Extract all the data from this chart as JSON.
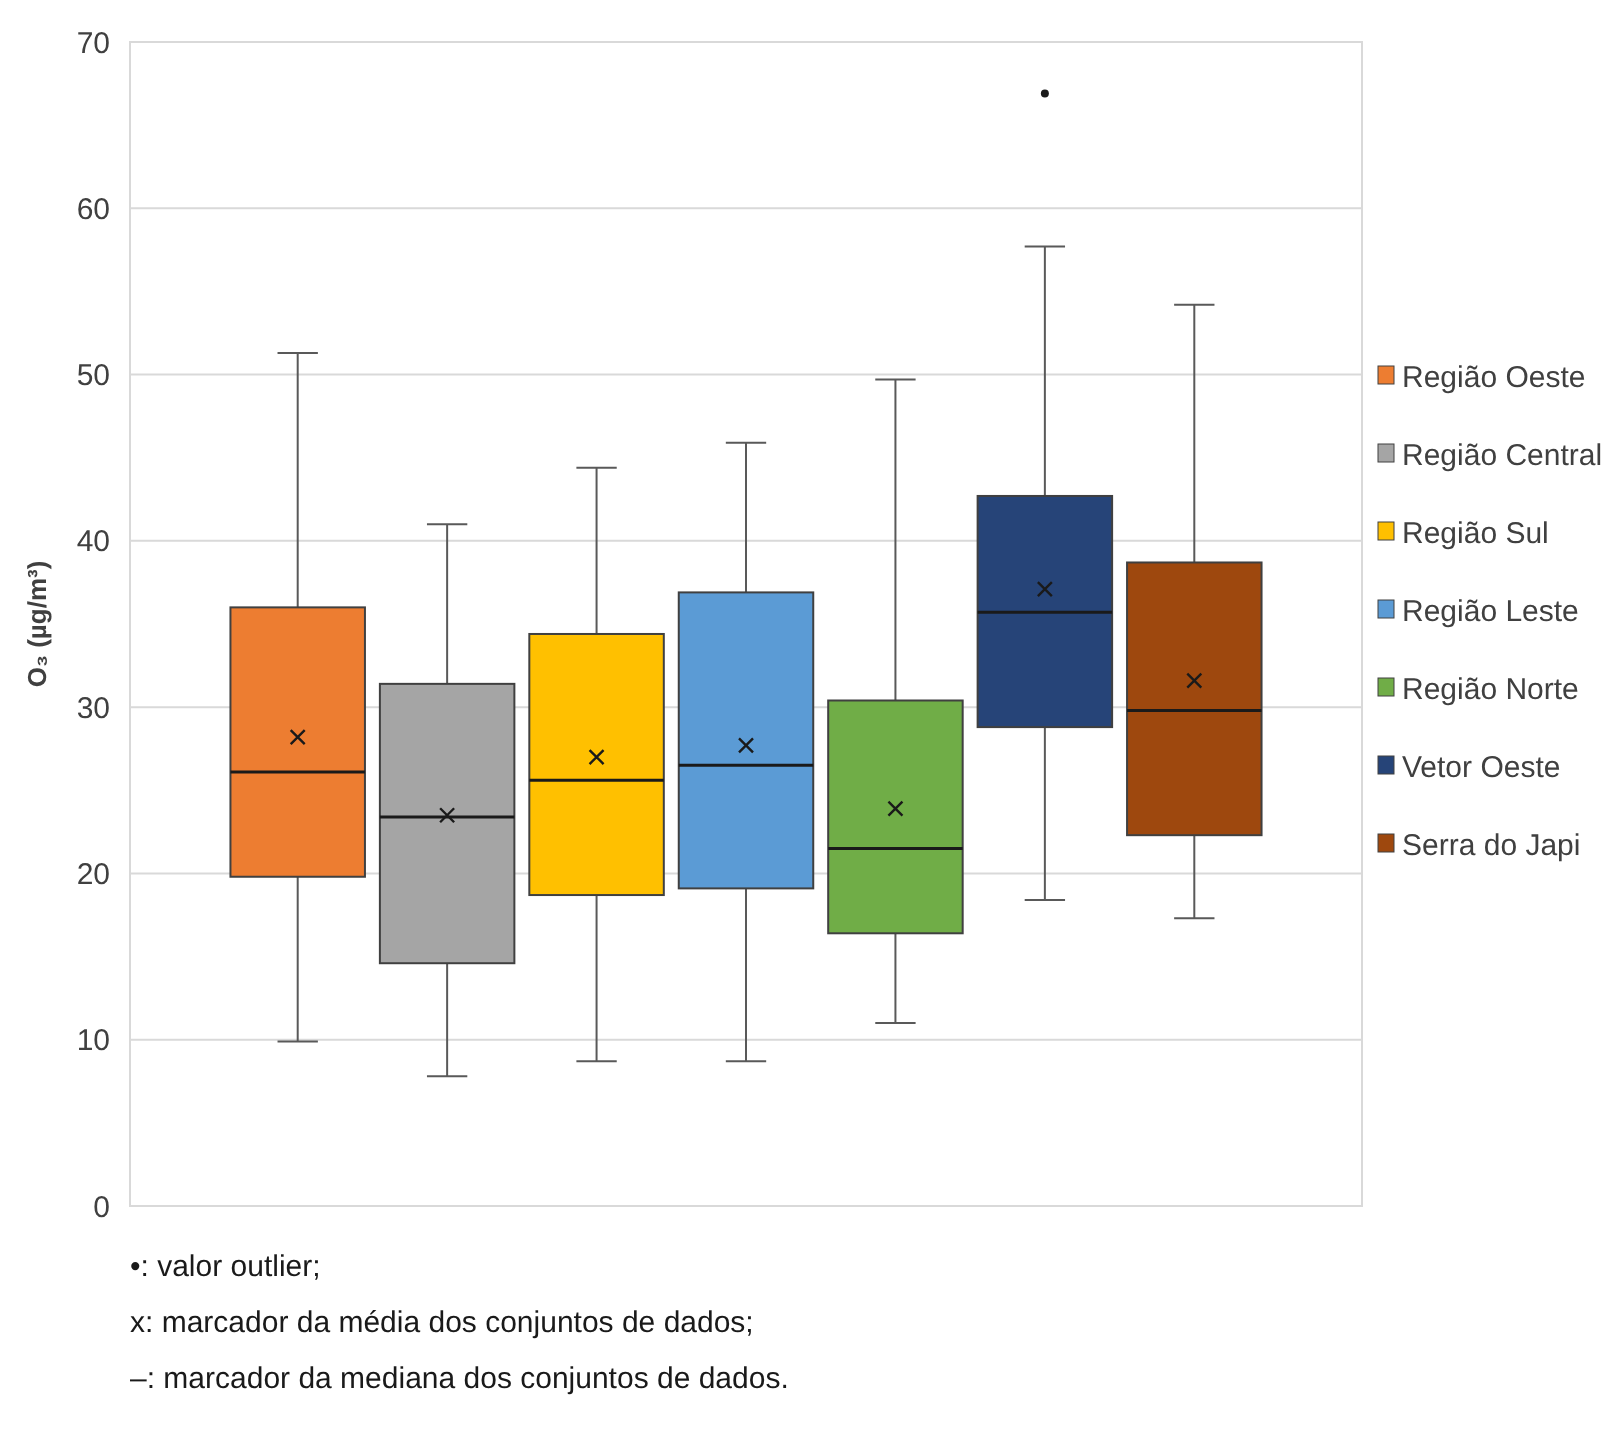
{
  "chart_data": {
    "type": "box",
    "ylabel": "O₃ (µg/m³)",
    "categories": [
      null
    ],
    "ylim": [
      0,
      70
    ],
    "yticks": [
      0,
      10,
      20,
      30,
      40,
      50,
      60,
      70
    ],
    "grid": "y",
    "legend": "right",
    "series": [
      {
        "name": "Região Oeste",
        "color": "#ed7d31",
        "boxes": [
          {
            "low": 9.9,
            "q1": 19.8,
            "median": 26.1,
            "q3": 36.0,
            "high": 51.3,
            "mean": 28.2
          }
        ]
      },
      {
        "name": "Região Central",
        "color": "#a5a5a5",
        "boxes": [
          {
            "low": 7.8,
            "q1": 14.6,
            "median": 23.4,
            "q3": 31.4,
            "high": 41.0,
            "mean": 23.5
          }
        ]
      },
      {
        "name": "Região Sul",
        "color": "#ffc000",
        "boxes": [
          {
            "low": 8.7,
            "q1": 18.7,
            "median": 25.6,
            "q3": 34.4,
            "high": 44.4,
            "mean": 27.0
          }
        ]
      },
      {
        "name": "Região Leste",
        "color": "#5b9bd5",
        "boxes": [
          {
            "low": 8.7,
            "q1": 19.1,
            "median": 26.5,
            "q3": 36.9,
            "high": 45.9,
            "mean": 27.7
          }
        ]
      },
      {
        "name": "Região Norte",
        "color": "#70ad47",
        "boxes": [
          {
            "low": 11.0,
            "q1": 16.4,
            "median": 21.5,
            "q3": 30.4,
            "high": 49.7,
            "mean": 23.9
          }
        ]
      },
      {
        "name": "Vetor Oeste",
        "color": "#264478",
        "boxes": [
          {
            "low": 18.4,
            "q1": 28.8,
            "median": 35.7,
            "q3": 42.7,
            "high": 57.7,
            "mean": 37.1,
            "outliers": [
              66.9
            ]
          }
        ]
      },
      {
        "name": "Serra do Japi",
        "color": "#9e480e",
        "boxes": [
          {
            "low": 17.3,
            "q1": 22.3,
            "median": 29.8,
            "q3": 38.7,
            "high": 54.2,
            "mean": 31.6
          }
        ]
      }
    ],
    "annotations": [
      "•: valor outlier;",
      "x: marcador da média dos conjuntos de dados;",
      "–: marcador da mediana dos conjuntos de dados."
    ]
  }
}
